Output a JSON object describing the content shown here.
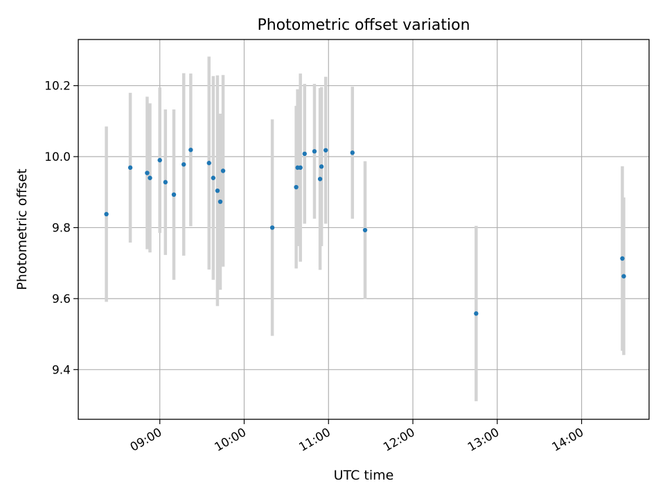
{
  "chart_data": {
    "type": "scatter",
    "title": "Photometric offset variation",
    "xlabel": "UTC time",
    "ylabel": "Photometric offset",
    "xlim": [
      "08:02",
      "14:48"
    ],
    "ylim": [
      9.26,
      10.33
    ],
    "x_ticks": [
      "09:00",
      "10:00",
      "11:00",
      "12:00",
      "13:00",
      "14:00"
    ],
    "y_ticks": [
      9.4,
      9.6,
      9.8,
      10.0,
      10.2
    ],
    "grid": true,
    "colors": {
      "points": "#1f77b4",
      "errorbars": "#d3d3d3",
      "grid": "#b0b0b0"
    },
    "points": [
      {
        "x": "08:22",
        "y": 9.838,
        "err": 0.247
      },
      {
        "x": "08:39",
        "y": 9.969,
        "err": 0.211
      },
      {
        "x": "08:51",
        "y": 9.954,
        "err": 0.215
      },
      {
        "x": "08:53",
        "y": 9.94,
        "err": 0.21
      },
      {
        "x": "09:00",
        "y": 9.99,
        "err": 0.205
      },
      {
        "x": "09:04",
        "y": 9.928,
        "err": 0.205
      },
      {
        "x": "09:10",
        "y": 9.893,
        "err": 0.24
      },
      {
        "x": "09:17",
        "y": 9.978,
        "err": 0.257
      },
      {
        "x": "09:22",
        "y": 10.019,
        "err": 0.215
      },
      {
        "x": "09:35",
        "y": 9.982,
        "err": 0.3
      },
      {
        "x": "09:38",
        "y": 9.94,
        "err": 0.287
      },
      {
        "x": "09:41",
        "y": 9.904,
        "err": 0.325
      },
      {
        "x": "09:43",
        "y": 9.873,
        "err": 0.248
      },
      {
        "x": "09:45",
        "y": 9.96,
        "err": 0.27
      },
      {
        "x": "10:20",
        "y": 9.8,
        "err": 0.305
      },
      {
        "x": "10:37",
        "y": 9.914,
        "err": 0.229
      },
      {
        "x": "10:38",
        "y": 9.969,
        "err": 0.221
      },
      {
        "x": "10:40",
        "y": 9.969,
        "err": 0.265
      },
      {
        "x": "10:43",
        "y": 10.008,
        "err": 0.197
      },
      {
        "x": "10:50",
        "y": 10.015,
        "err": 0.19
      },
      {
        "x": "10:54",
        "y": 9.937,
        "err": 0.256
      },
      {
        "x": "10:55",
        "y": 9.972,
        "err": 0.224
      },
      {
        "x": "10:58",
        "y": 10.018,
        "err": 0.207
      },
      {
        "x": "11:17",
        "y": 10.011,
        "err": 0.186
      },
      {
        "x": "11:26",
        "y": 9.793,
        "err": 0.194
      },
      {
        "x": "12:45",
        "y": 9.558,
        "err": 0.247
      },
      {
        "x": "14:29",
        "y": 9.713,
        "err": 0.26
      },
      {
        "x": "14:30",
        "y": 9.663,
        "err": 0.222
      }
    ]
  }
}
